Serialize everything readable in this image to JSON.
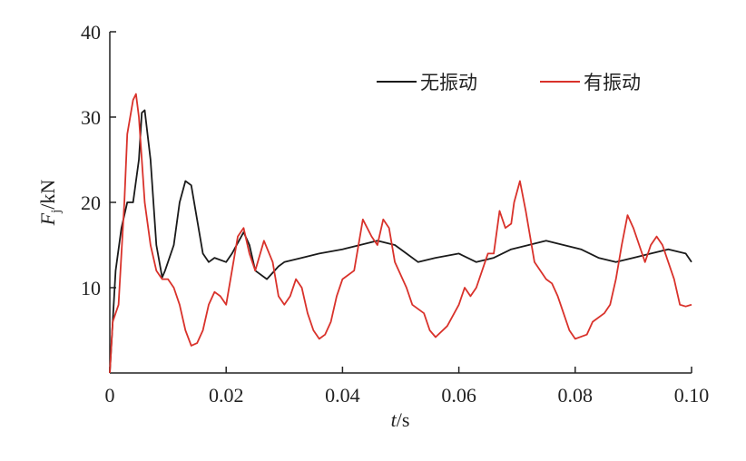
{
  "chart_data": {
    "type": "line",
    "x_label": {
      "symbol": "t",
      "unit": "/s"
    },
    "y_label": {
      "symbol": "F",
      "subscript": "j",
      "unit": "/kN"
    },
    "xlim": [
      0,
      0.1
    ],
    "xticks": [
      0,
      0.02,
      0.04,
      0.06,
      0.08,
      {
        "value": 0.1,
        "label": "0.10"
      }
    ],
    "ylim": [
      0,
      40
    ],
    "yticks": [
      10,
      20,
      30,
      40
    ],
    "legend": "upper right",
    "series": [
      {
        "name": "无振动",
        "color": "#1a1a1a",
        "x": [
          0,
          0.001,
          0.002,
          0.003,
          0.004,
          0.005,
          0.0055,
          0.006,
          0.007,
          0.008,
          0.009,
          0.0095,
          0.011,
          0.012,
          0.013,
          0.014,
          0.015,
          0.016,
          0.017,
          0.018,
          0.02,
          0.021,
          0.023,
          0.024,
          0.025,
          0.027,
          0.029,
          0.03,
          0.033,
          0.036,
          0.04,
          0.043,
          0.046,
          0.049,
          0.051,
          0.053,
          0.056,
          0.06,
          0.063,
          0.066,
          0.069,
          0.072,
          0.075,
          0.078,
          0.081,
          0.084,
          0.087,
          0.09,
          0.093,
          0.096,
          0.099,
          0.1
        ],
        "values": [
          0,
          12,
          17,
          20,
          20,
          25,
          30.5,
          30.8,
          25,
          15,
          11.2,
          12,
          15,
          20,
          22.5,
          22,
          18,
          14,
          13,
          13.5,
          13,
          14,
          16.5,
          15,
          12,
          11,
          12.5,
          13,
          13.5,
          14,
          14.5,
          15,
          15.5,
          15,
          14,
          13,
          13.5,
          14,
          13,
          13.5,
          14.5,
          15,
          15.5,
          15,
          14.5,
          13.5,
          13,
          13.5,
          14,
          14.5,
          14,
          13
        ]
      },
      {
        "name": "有振动",
        "color": "#d9322b",
        "x": [
          0,
          0.0005,
          0.0015,
          0.0025,
          0.003,
          0.004,
          0.0045,
          0.005,
          0.006,
          0.007,
          0.008,
          0.009,
          0.01,
          0.011,
          0.012,
          0.013,
          0.014,
          0.015,
          0.016,
          0.017,
          0.018,
          0.019,
          0.02,
          0.021,
          0.022,
          0.023,
          0.024,
          0.025,
          0.0265,
          0.028,
          0.029,
          0.03,
          0.031,
          0.032,
          0.033,
          0.034,
          0.035,
          0.036,
          0.037,
          0.038,
          0.039,
          0.04,
          0.042,
          0.0435,
          0.045,
          0.046,
          0.047,
          0.048,
          0.049,
          0.051,
          0.052,
          0.054,
          0.055,
          0.056,
          0.058,
          0.06,
          0.061,
          0.062,
          0.063,
          0.065,
          0.066,
          0.067,
          0.068,
          0.069,
          0.0695,
          0.0705,
          0.0715,
          0.073,
          0.075,
          0.076,
          0.077,
          0.078,
          0.079,
          0.08,
          0.082,
          0.083,
          0.085,
          0.086,
          0.087,
          0.088,
          0.089,
          0.09,
          0.091,
          0.092,
          0.093,
          0.094,
          0.095,
          0.096,
          0.097,
          0.098,
          0.099,
          0.1
        ],
        "values": [
          0,
          6,
          8,
          20,
          28,
          32,
          32.7,
          30,
          20,
          15,
          12,
          11,
          11,
          10,
          8,
          5,
          3.2,
          3.5,
          5,
          8,
          9.5,
          9,
          8,
          12,
          16,
          17,
          14,
          12,
          15.5,
          13,
          9,
          8,
          9,
          11,
          10,
          7,
          5,
          4,
          4.5,
          6,
          9,
          11,
          12,
          18,
          16,
          15,
          18,
          17,
          13,
          10,
          8,
          7,
          5,
          4.2,
          5.5,
          8,
          10,
          9,
          10,
          14,
          14,
          19,
          17,
          17.5,
          20,
          22.5,
          19,
          13,
          11,
          10.5,
          9,
          7,
          5,
          4,
          4.5,
          6,
          7,
          8,
          11,
          15,
          18.5,
          17,
          15,
          13,
          15,
          16,
          15,
          13,
          11,
          8,
          7.8,
          8
        ]
      }
    ]
  }
}
